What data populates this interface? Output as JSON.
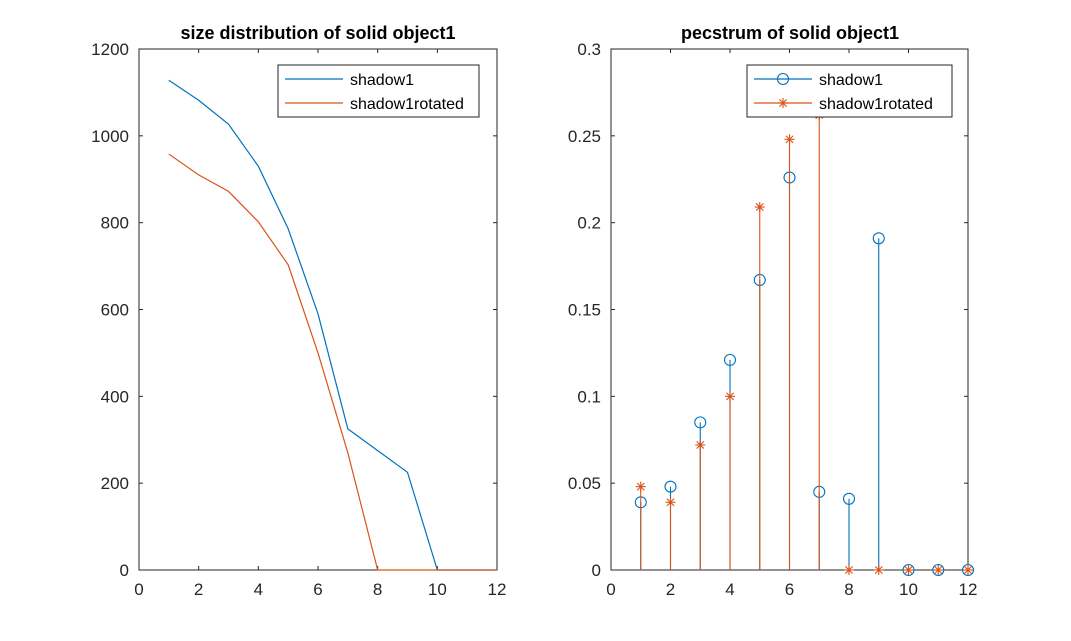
{
  "colors": {
    "series1": "#0072BD",
    "series2": "#D95319",
    "axis": "#262626",
    "background": "#ffffff"
  },
  "chart_data": [
    {
      "type": "line",
      "title": "size distribution of solid object1",
      "xlabel": "",
      "ylabel": "",
      "xlim": [
        0,
        12
      ],
      "ylim": [
        0,
        1200
      ],
      "xticks": [
        "0",
        "2",
        "4",
        "6",
        "8",
        "10",
        "12"
      ],
      "yticks": [
        "0",
        "200",
        "400",
        "600",
        "800",
        "1000",
        "1200"
      ],
      "grid": false,
      "legend": "top-right",
      "x": [
        1,
        2,
        3,
        4,
        5,
        6,
        7,
        8,
        9,
        10,
        11,
        12
      ],
      "series": [
        {
          "name": "shadow1",
          "values": [
            1128,
            1082,
            1027,
            930,
            786,
            590,
            325,
            275,
            225,
            0,
            0,
            0
          ]
        },
        {
          "name": "shadow1rotated",
          "values": [
            958,
            910,
            872,
            802,
            703,
            500,
            270,
            0,
            0,
            0,
            0,
            0
          ]
        }
      ]
    },
    {
      "type": "stem",
      "title": "pecstrum of solid object1",
      "xlabel": "",
      "ylabel": "",
      "xlim": [
        0,
        12
      ],
      "ylim": [
        0,
        0.3
      ],
      "xticks": [
        "0",
        "2",
        "4",
        "6",
        "8",
        "10",
        "12"
      ],
      "yticks": [
        "0",
        "0.05",
        "0.1",
        "0.15",
        "0.2",
        "0.25",
        "0.3"
      ],
      "grid": false,
      "legend": "top-right",
      "x": [
        1,
        2,
        3,
        4,
        5,
        6,
        7,
        8,
        9,
        10,
        11,
        12
      ],
      "series": [
        {
          "name": "shadow1",
          "marker": "circle",
          "values": [
            0.039,
            0.048,
            0.085,
            0.121,
            0.167,
            0.226,
            0.045,
            0.041,
            0.191,
            0,
            0,
            0
          ]
        },
        {
          "name": "shadow1rotated",
          "marker": "asterisk",
          "values": [
            0.048,
            0.039,
            0.072,
            0.1,
            0.209,
            0.248,
            0.262,
            0,
            0,
            0,
            0,
            0
          ]
        }
      ]
    }
  ]
}
